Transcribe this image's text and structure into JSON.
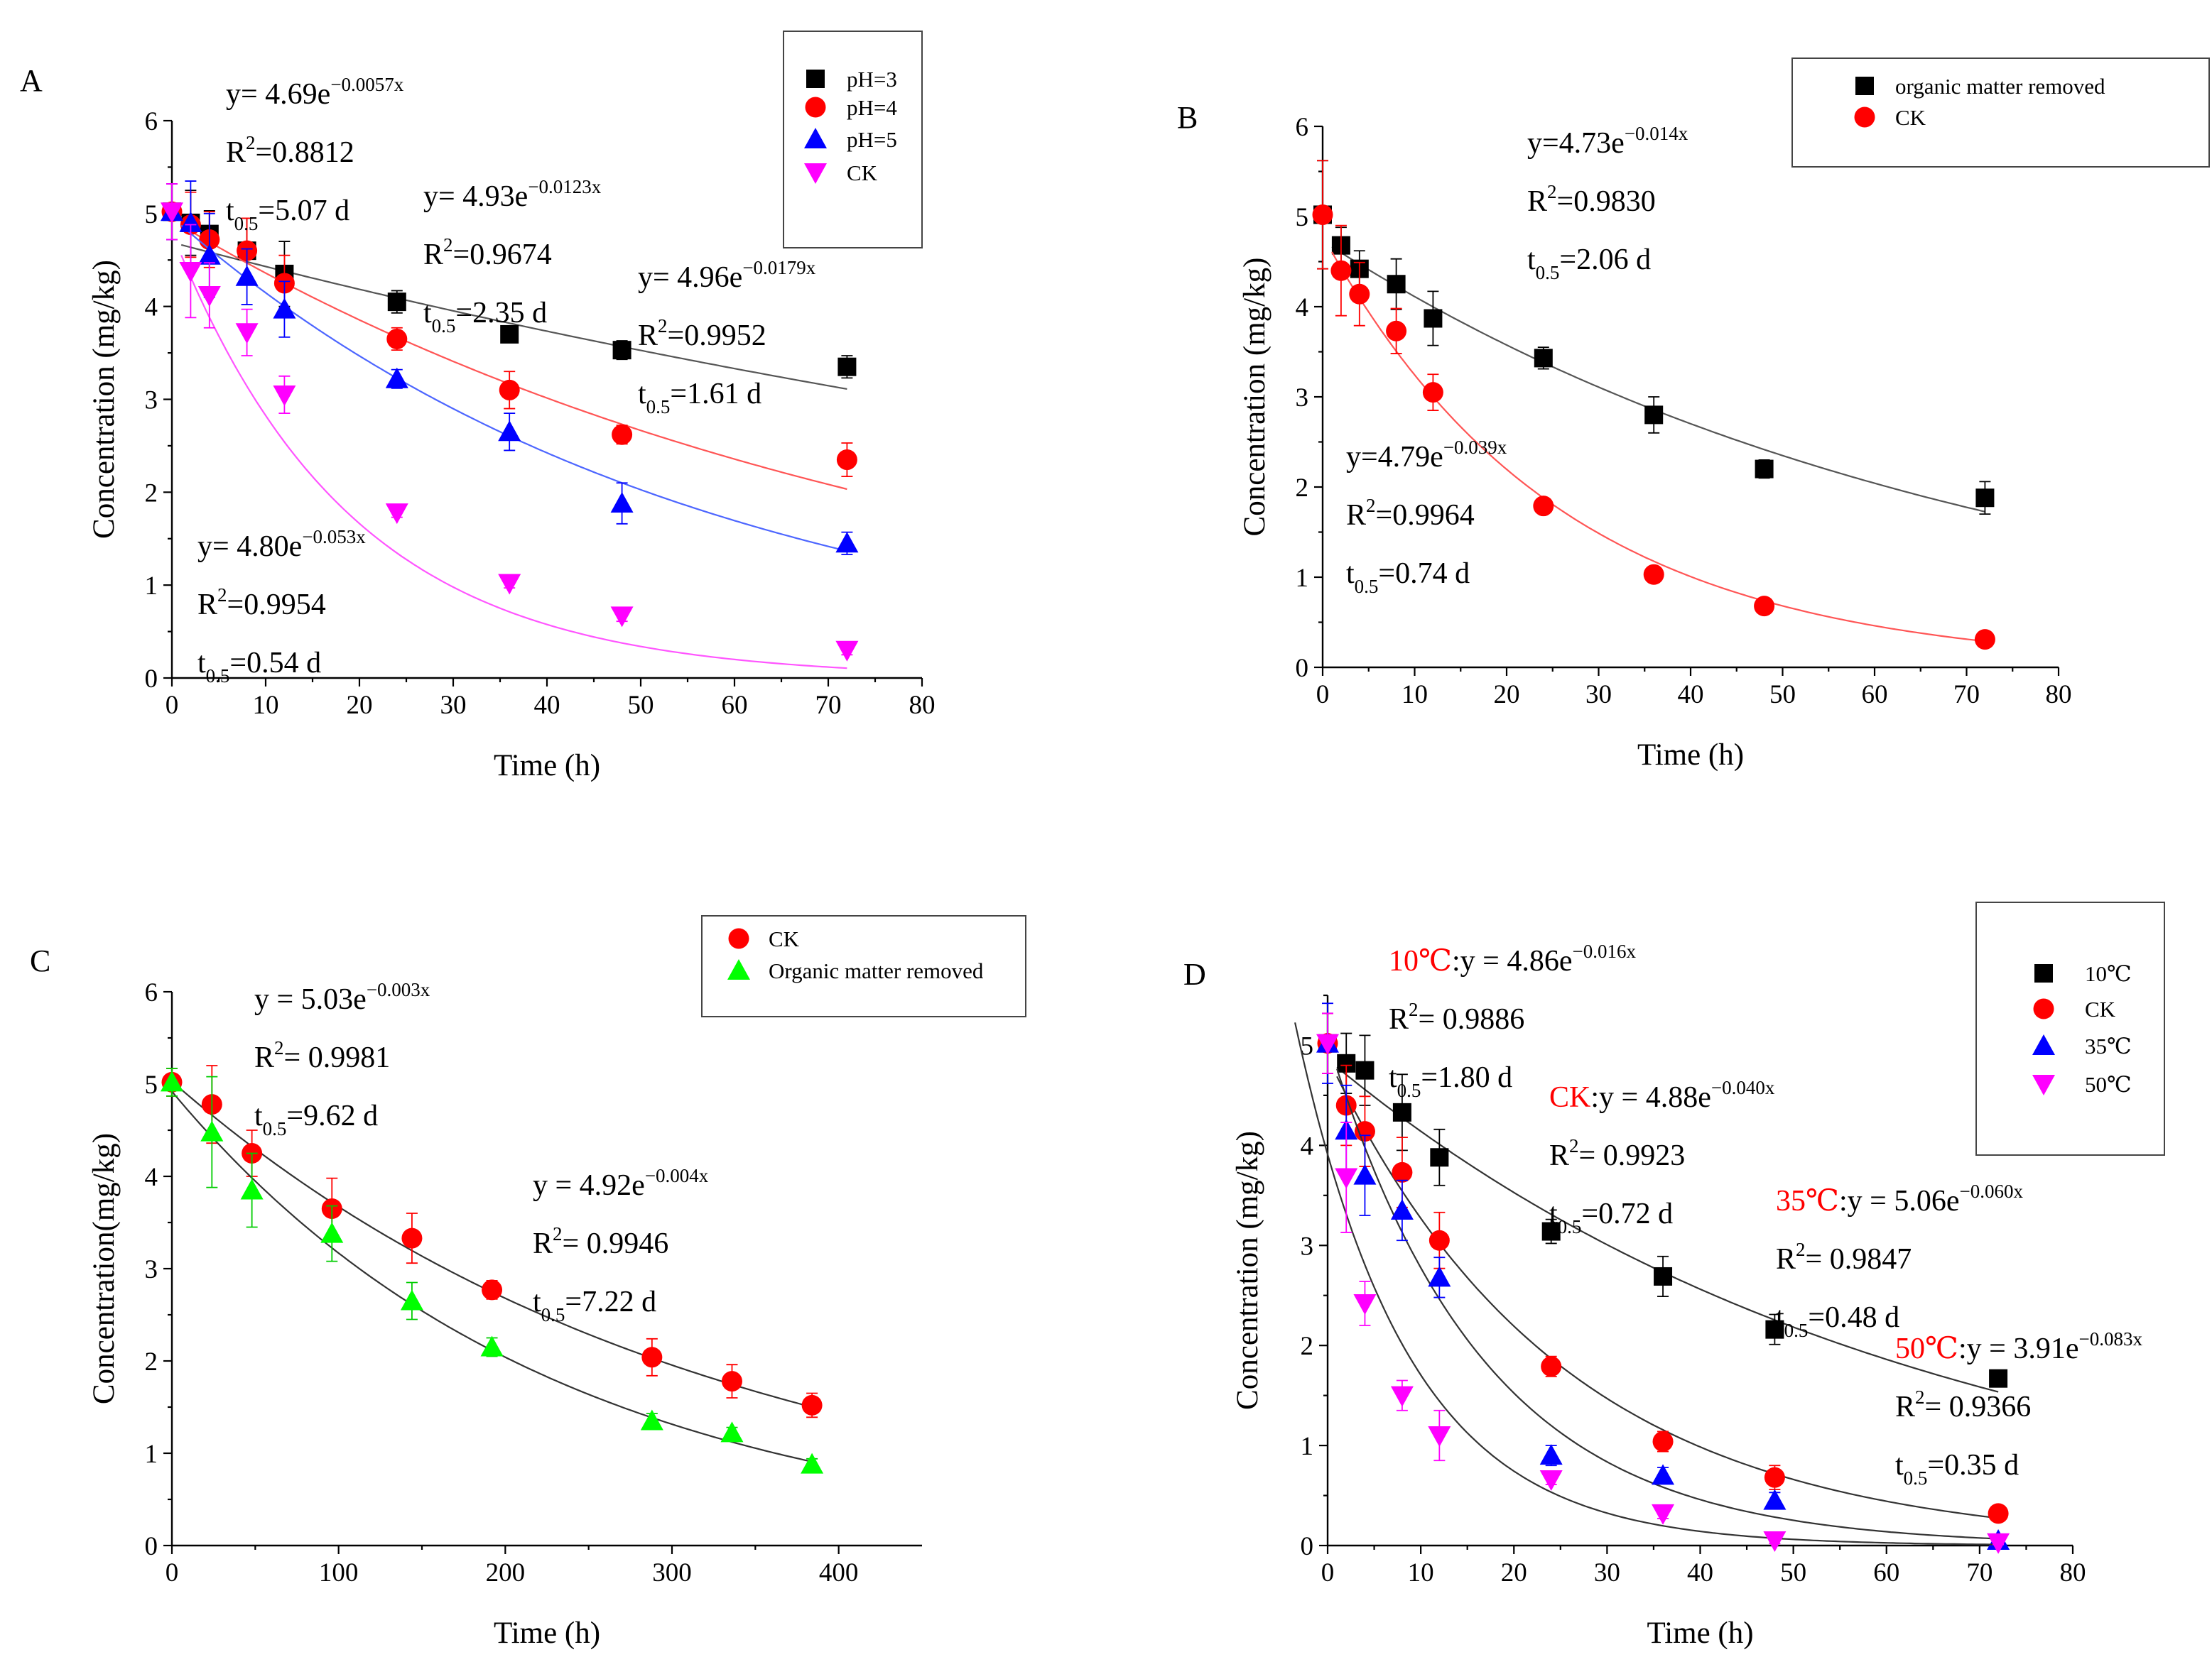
{
  "colors": {
    "black": "#000000",
    "red": "#ff0000",
    "blue": "#0000ff",
    "magenta": "#ff00ff",
    "green": "#00ff00",
    "gray_curve": "#555555",
    "light_red_curve": "#ff5555",
    "light_blue_curve": "#4d66ff",
    "light_magenta_curve": "#ff55ff"
  },
  "chart_data": [
    {
      "panel_label": "A",
      "type": "scatter",
      "xlabel": "Time (h)",
      "ylabel": "Concentration (mg/kg)",
      "xlim": [
        0,
        80
      ],
      "ylim": [
        0,
        6
      ],
      "xticks": [
        "0",
        "10",
        "20",
        "30",
        "40",
        "50",
        "60",
        "70",
        "80"
      ],
      "yticks": [
        "0",
        "1",
        "2",
        "3",
        "4",
        "5",
        "6"
      ],
      "legend_position": "top-right",
      "series": [
        {
          "name": "pH=3",
          "marker": "square",
          "color": "#000000",
          "curve_color": "#555555",
          "x": [
            0,
            2,
            4,
            8,
            12,
            24,
            36,
            48,
            72
          ],
          "y": [
            5.02,
            4.9,
            4.78,
            4.6,
            4.35,
            4.05,
            3.7,
            3.53,
            3.35
          ],
          "err": [
            0.3,
            0.35,
            0.25,
            0.35,
            0.35,
            0.12,
            0.08,
            0.1,
            0.12
          ],
          "fit": {
            "a": 4.69,
            "k": 0.0057,
            "x0": 1
          },
          "equation": {
            "pre": "y= 4.69e",
            "exp": "−0.0057x"
          },
          "r2_value": "=0.8812",
          "t_half_value": "=5.07 d"
        },
        {
          "name": "pH=4",
          "marker": "circle",
          "color": "#ff0000",
          "curve_color": "#ff5555",
          "x": [
            0,
            2,
            4,
            8,
            12,
            24,
            36,
            48,
            72
          ],
          "y": [
            5.02,
            4.88,
            4.72,
            4.6,
            4.25,
            3.65,
            3.1,
            2.62,
            2.35
          ],
          "err": [
            0.3,
            0.35,
            0.3,
            0.35,
            0.3,
            0.12,
            0.2,
            0.1,
            0.18
          ],
          "fit": {
            "a": 4.93,
            "k": 0.0123,
            "x0": 1
          },
          "equation": {
            "pre": "y= 4.93e",
            "exp": "−0.0123x"
          },
          "r2_value": "=0.9674",
          "t_half_value": "=2.35 d"
        },
        {
          "name": "pH=5",
          "marker": "triangle-up",
          "color": "#0000ff",
          "curve_color": "#4d66ff",
          "x": [
            0,
            2,
            4,
            8,
            12,
            24,
            36,
            48,
            72
          ],
          "y": [
            5.02,
            4.9,
            4.55,
            4.32,
            3.97,
            3.22,
            2.65,
            1.88,
            1.45
          ],
          "err": [
            0.3,
            0.45,
            0.45,
            0.3,
            0.3,
            0.1,
            0.2,
            0.22,
            0.12
          ],
          "fit": {
            "a": 4.96,
            "k": 0.0179,
            "x0": 1
          },
          "equation": {
            "pre": "y= 4.96e",
            "exp": "−0.0179x"
          },
          "r2_value": "=0.9952",
          "t_half_value": "=1.61 d"
        },
        {
          "name": "CK",
          "marker": "triangle-down",
          "color": "#ff00ff",
          "curve_color": "#ff55ff",
          "x": [
            0,
            2,
            4,
            8,
            12,
            24,
            36,
            48,
            72
          ],
          "y": [
            5.02,
            4.38,
            4.12,
            3.72,
            3.05,
            1.78,
            1.02,
            0.67,
            0.3
          ],
          "err": [
            0.3,
            0.5,
            0.35,
            0.25,
            0.2,
            0.05,
            0.05,
            0.06,
            0.05
          ],
          "fit": {
            "a": 4.8,
            "k": 0.053,
            "x0": 1
          },
          "equation": {
            "pre": "y= 4.80e",
            "exp": "−0.053x"
          },
          "r2_value": "=0.9954",
          "t_half_value": "=0.54 d"
        }
      ]
    },
    {
      "panel_label": "B",
      "type": "scatter",
      "xlabel": "Time (h)",
      "ylabel": "Concentration (mg/kg)",
      "xlim": [
        0,
        80
      ],
      "ylim": [
        0,
        6
      ],
      "xticks": [
        "0",
        "10",
        "20",
        "30",
        "40",
        "50",
        "60",
        "70",
        "80"
      ],
      "yticks": [
        "0",
        "1",
        "2",
        "3",
        "4",
        "5",
        "6"
      ],
      "legend_position": "top-right",
      "series": [
        {
          "name": "organic matter removed",
          "marker": "square",
          "color": "#000000",
          "curve_color": "#555555",
          "x": [
            0,
            2,
            4,
            8,
            12,
            24,
            36,
            48,
            72
          ],
          "y": [
            5.02,
            4.68,
            4.42,
            4.25,
            3.87,
            3.43,
            2.8,
            2.2,
            1.88
          ],
          "err": [
            0.6,
            0.2,
            0.2,
            0.28,
            0.3,
            0.12,
            0.2,
            0.1,
            0.18
          ],
          "fit": {
            "a": 4.73,
            "k": 0.014,
            "x0": 1
          },
          "equation": {
            "pre": "y=4.73e",
            "exp": "−0.014x"
          },
          "r2_value": "=0.9830",
          "t_half_value": "=2.06 d"
        },
        {
          "name": "CK",
          "marker": "circle",
          "color": "#ff0000",
          "curve_color": "#ff5555",
          "x": [
            0,
            2,
            4,
            8,
            12,
            24,
            36,
            48,
            72
          ],
          "y": [
            5.02,
            4.4,
            4.14,
            3.73,
            3.05,
            1.79,
            1.03,
            0.68,
            0.31
          ],
          "err": [
            0.6,
            0.5,
            0.35,
            0.25,
            0.2,
            0.08,
            0.05,
            0.06,
            0.06
          ],
          "fit": {
            "a": 4.79,
            "k": 0.039,
            "x0": 1
          },
          "equation": {
            "pre": "y=4.79e",
            "exp": "−0.039x"
          },
          "r2_value": "=0.9964",
          "t_half_value": "=0.74 d"
        }
      ]
    },
    {
      "panel_label": "C",
      "type": "scatter",
      "xlabel": "Time (h)",
      "ylabel": "Concentration(mg/kg)",
      "xlim": [
        0,
        450
      ],
      "ylim": [
        0,
        6
      ],
      "xticks": [
        "0",
        "100",
        "200",
        "300",
        "400"
      ],
      "xtick_values": [
        0,
        100,
        200,
        300,
        400
      ],
      "yticks": [
        "0",
        "1",
        "2",
        "3",
        "4",
        "5",
        "6"
      ],
      "legend_position": "top-right",
      "series": [
        {
          "name": "CK",
          "marker": "circle",
          "color": "#ff0000",
          "curve_color": "#333333",
          "x": [
            0,
            24,
            48,
            96,
            144,
            192,
            288,
            336,
            384
          ],
          "y": [
            5.02,
            4.78,
            4.25,
            3.65,
            3.33,
            2.77,
            2.04,
            1.78,
            1.52
          ],
          "err": [
            0.15,
            0.42,
            0.25,
            0.33,
            0.27,
            0.1,
            0.2,
            0.18,
            0.13
          ],
          "fit": {
            "a": 5.03,
            "k": 0.00315,
            "x0": 0
          },
          "equation": {
            "pre": "y = 5.03e",
            "exp": "−0.003x"
          },
          "r2_value": "= 0.9981",
          "t_half_value": "=9.62 d"
        },
        {
          "name": "Organic matter removed",
          "marker": "triangle-up",
          "color": "#00ff00",
          "curve_color": "#333333",
          "x": [
            0,
            24,
            48,
            96,
            144,
            192,
            288,
            336,
            384
          ],
          "y": [
            5.02,
            4.48,
            3.85,
            3.38,
            2.65,
            2.15,
            1.35,
            1.22,
            0.88
          ],
          "err": [
            0.15,
            0.6,
            0.4,
            0.3,
            0.2,
            0.1,
            0.08,
            0.06,
            0.06
          ],
          "fit": {
            "a": 4.92,
            "k": 0.0044,
            "x0": 0
          },
          "equation": {
            "pre": "y = 4.92e",
            "exp": "−0.004x"
          },
          "r2_value": "= 0.9946",
          "t_half_value": "=7.22 d"
        }
      ]
    },
    {
      "panel_label": "D",
      "type": "scatter",
      "xlabel": "Time (h)",
      "ylabel": "Concentration (mg/kg)",
      "xlim": [
        0,
        80
      ],
      "ylim": [
        0,
        5.5
      ],
      "xticks": [
        "0",
        "10",
        "20",
        "30",
        "40",
        "50",
        "60",
        "70",
        "80"
      ],
      "yticks": [
        "0",
        "1",
        "2",
        "3",
        "4",
        "5"
      ],
      "legend_position": "top-right",
      "series": [
        {
          "name": "10℃",
          "marker": "square",
          "color": "#000000",
          "curve_color": "#333333",
          "x": [
            0,
            2,
            4,
            8,
            12,
            24,
            36,
            48,
            72
          ],
          "y": [
            5.02,
            4.82,
            4.75,
            4.33,
            3.88,
            3.14,
            2.69,
            2.16,
            1.67
          ],
          "err": [
            0.3,
            0.3,
            0.35,
            0.38,
            0.28,
            0.12,
            0.2,
            0.15,
            0.08
          ],
          "fit": {
            "a": 4.86,
            "k": 0.016,
            "x0": 1
          },
          "prefix": "10℃",
          "equation": {
            "pre": ":y = 4.86e",
            "exp": "−0.016x"
          },
          "r2_value": "= 0.9886",
          "t_half_value": "=1.80 d"
        },
        {
          "name": "CK",
          "marker": "circle",
          "color": "#ff0000",
          "curve_color": "#333333",
          "x": [
            0,
            2,
            4,
            8,
            12,
            24,
            36,
            48,
            72
          ],
          "y": [
            5.02,
            4.4,
            4.14,
            3.73,
            3.05,
            1.79,
            1.04,
            0.68,
            0.32
          ],
          "err": [
            0.3,
            0.4,
            0.35,
            0.35,
            0.28,
            0.1,
            0.1,
            0.12,
            0.02
          ],
          "fit": {
            "a": 4.88,
            "k": 0.04,
            "x0": 1
          },
          "prefix": "CK",
          "equation": {
            "pre": ":y = 4.88e",
            "exp": "−0.040x"
          },
          "r2_value": "= 0.9923",
          "t_half_value": "=0.72 d"
        },
        {
          "name": "35℃",
          "marker": "triangle-up",
          "color": "#0000ff",
          "curve_color": "#333333",
          "x": [
            0,
            2,
            4,
            8,
            12,
            24,
            36,
            48,
            72
          ],
          "y": [
            5.02,
            4.15,
            3.7,
            3.35,
            2.68,
            0.9,
            0.7,
            0.45,
            0.05
          ],
          "err": [
            0.4,
            0.45,
            0.4,
            0.3,
            0.2,
            0.1,
            0.08,
            0.08,
            0.03
          ],
          "fit": {
            "a": 5.06,
            "k": 0.06,
            "x0": 1
          },
          "prefix": "35℃",
          "equation": {
            "pre": ":y = 5.06e",
            "exp": "−0.060x"
          },
          "r2_value": "= 0.9847",
          "t_half_value": "=0.48 d"
        },
        {
          "name": "50℃",
          "marker": "triangle-down",
          "color": "#ff00ff",
          "curve_color": "#333333",
          "x": [
            0,
            2,
            4,
            8,
            12,
            24,
            36,
            48,
            72
          ],
          "y": [
            5.02,
            3.68,
            2.42,
            1.5,
            1.1,
            0.66,
            0.32,
            0.05,
            0.03
          ],
          "err": [
            0.3,
            0.55,
            0.22,
            0.15,
            0.25,
            0.05,
            0.05,
            0.03,
            0.02
          ],
          "fit": {
            "a": 3.91,
            "k": 0.083,
            "x0": -3.5
          },
          "prefix": "50℃",
          "equation": {
            "pre": ":y = 3.91e",
            "exp": "−0.083x"
          },
          "r2_value": "= 0.9366",
          "t_half_value": "=0.35 d"
        }
      ]
    }
  ],
  "annotation_text": {
    "r2_prefix": "R",
    "r2_sup": "2",
    "t_prefix": "t",
    "t_sub": "0.5"
  }
}
